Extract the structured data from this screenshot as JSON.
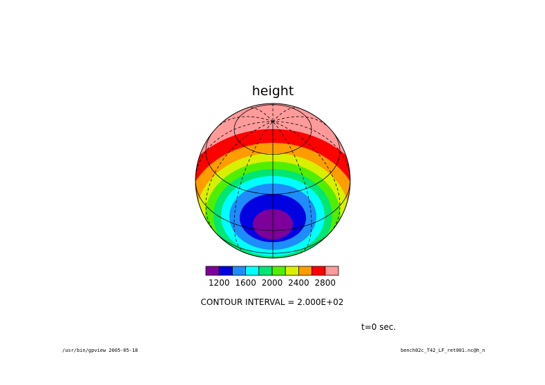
{
  "plot": {
    "title": "height",
    "projection": "orthographic globe",
    "colors": [
      "#7c0099",
      "#0000e1",
      "#1e8cfa",
      "#00ffff",
      "#00e673",
      "#52ee00",
      "#d8f000",
      "#ff9d00",
      "#ff0000",
      "#ff9a9a"
    ],
    "color_scale": {
      "tick_labels": [
        "1200",
        "1600",
        "2000",
        "2400",
        "2800"
      ]
    },
    "contour_interval": "CONTOUR INTERVAL = 2.000E+02",
    "time_label": "t=0 sec."
  },
  "footer": {
    "left": "/usr/bin/gpview  2005-05-18",
    "right": "bench02c_T42_LF_ret001.nc@h_n"
  }
}
